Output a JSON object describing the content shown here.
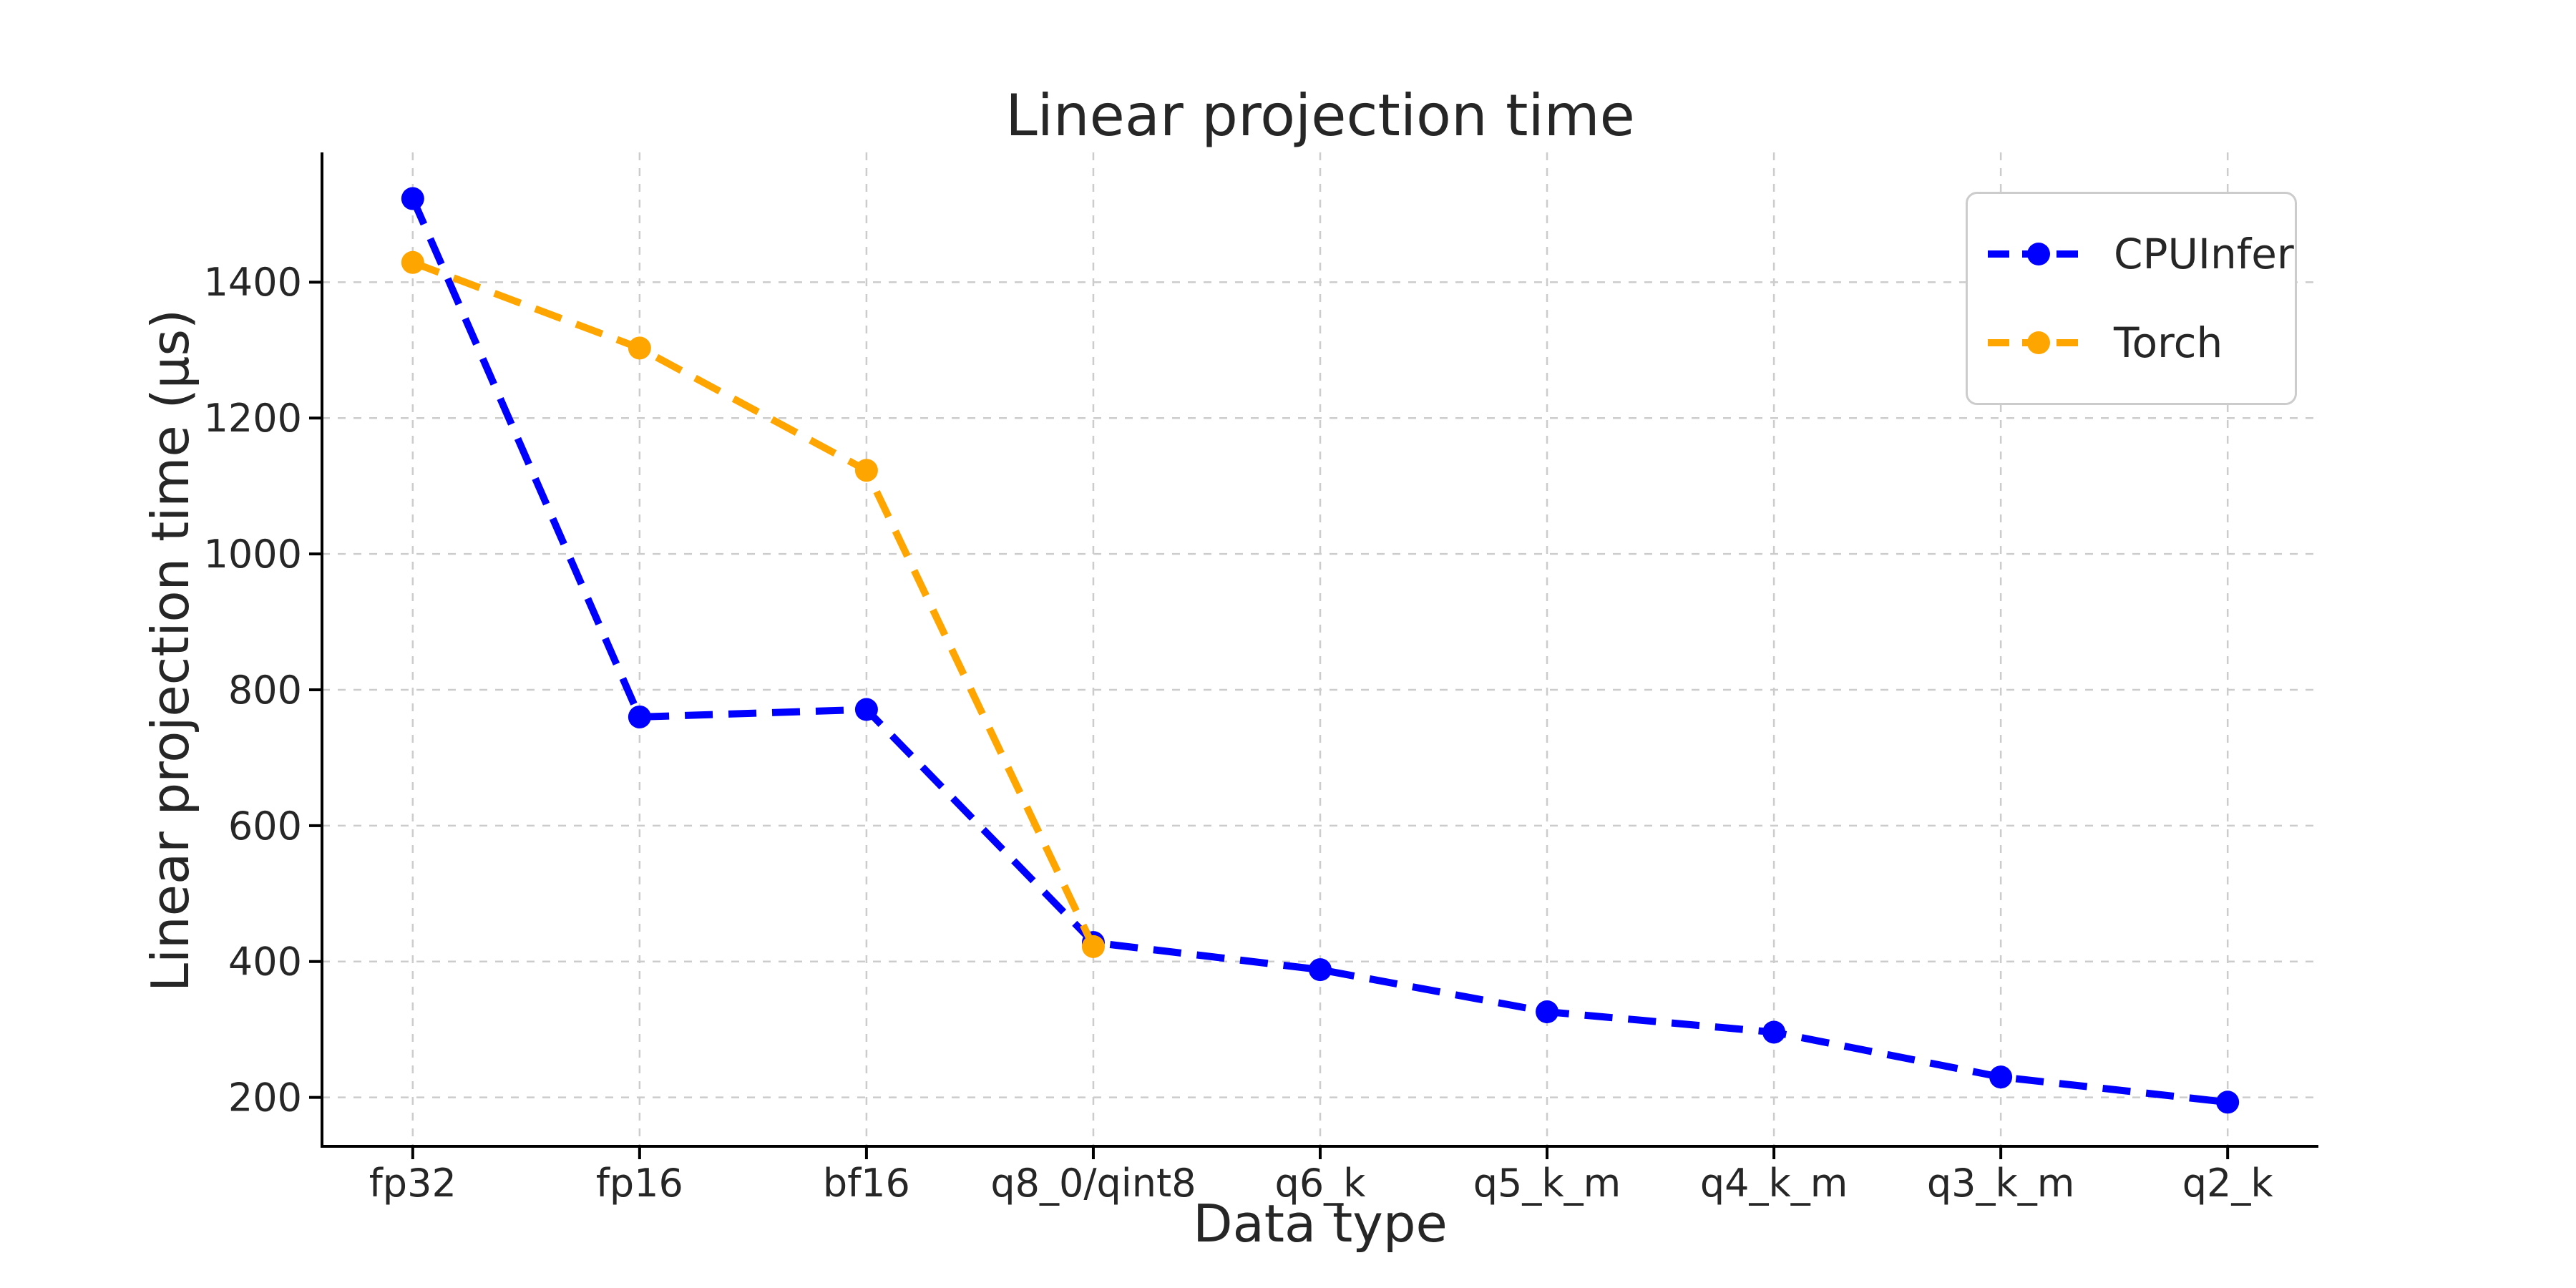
{
  "page": {
    "background": "#ffffff"
  },
  "chart_data": {
    "type": "line",
    "title": "Linear projection time",
    "xlabel": "Data type",
    "ylabel": "Linear projection time (µs)",
    "categories": [
      "fp32",
      "fp16",
      "bf16",
      "q8_0/qint8",
      "q6_k",
      "q5_k_m",
      "q4_k_m",
      "q3_k_m",
      "q2_k"
    ],
    "series": [
      {
        "name": "CPUInfer",
        "color": "#0000ff",
        "values": [
          1523,
          760,
          771,
          428,
          388,
          326,
          296,
          230,
          193
        ]
      },
      {
        "name": "Torch",
        "color": "#ffa500",
        "values": [
          1429,
          1303,
          1123,
          422,
          null,
          null,
          null,
          null,
          null
        ]
      }
    ],
    "yticks": [
      200,
      400,
      600,
      800,
      1000,
      1200,
      1400
    ],
    "ylim": [
      128,
      1591
    ],
    "grid": true,
    "grid_style": "dashed",
    "line_style": "dashed",
    "marker": "circle",
    "legend_position": "upper right",
    "colors": {
      "grid": "#cccccc",
      "spine": "#000000",
      "tick_text": "#262626",
      "legend_border": "#cccccc"
    }
  }
}
